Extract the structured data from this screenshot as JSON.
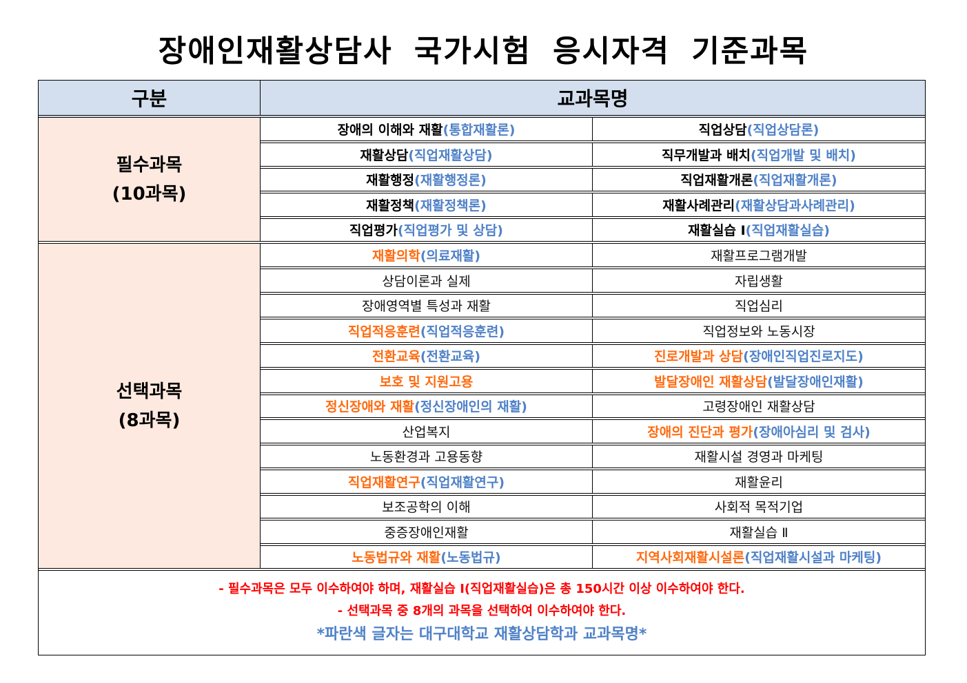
{
  "title": "장애인재활상담사 국가시험 응시자격 기준과목",
  "header": {
    "category": "구분",
    "subjects": "교과목명"
  },
  "colors": {
    "orange": "#ff6a0f",
    "blue": "#4f81c7",
    "red": "#ff0000",
    "header_bg": "#d3dfee",
    "category_bg": "#fde9df"
  },
  "groups": [
    {
      "label": "필수과목",
      "count": "(10과목)",
      "rows": [
        [
          {
            "main": "장애의 이해와 재활",
            "paren": "(통합재활론)",
            "style": "req"
          },
          {
            "main": "직업상담",
            "paren": "(직업상담론)",
            "style": "req"
          }
        ],
        [
          {
            "main": "재활상담",
            "paren": "(직업재활상담)",
            "style": "req"
          },
          {
            "main": "직무개발과 배치",
            "paren": "(직업개발 및 배치)",
            "style": "req"
          }
        ],
        [
          {
            "main": "재활행정",
            "paren": "(재활행정론)",
            "style": "req"
          },
          {
            "main": "직업재활개론",
            "paren": "(직업재활개론)",
            "style": "req"
          }
        ],
        [
          {
            "main": "재활정책",
            "paren": "(재활정책론)",
            "style": "req"
          },
          {
            "main": "재활사례관리",
            "paren": "(재활상담과사례관리)",
            "style": "req"
          }
        ],
        [
          {
            "main": "직업평가",
            "paren": "(직업평가 및 상담)",
            "style": "req"
          },
          {
            "main": "재활실습 Ⅰ",
            "paren": "(직업재활실습)",
            "style": "req"
          }
        ]
      ]
    },
    {
      "label": "선택과목",
      "count": "(8과목)",
      "rows": [
        [
          {
            "main": "재활의학",
            "paren": "(의료재활)",
            "style": "opt"
          },
          {
            "main": "재활프로그램개발",
            "paren": "",
            "style": "plain"
          }
        ],
        [
          {
            "main": "상담이론과 실제",
            "paren": "",
            "style": "plain"
          },
          {
            "main": "자립생활",
            "paren": "",
            "style": "plain"
          }
        ],
        [
          {
            "main": "장애영역별 특성과 재활",
            "paren": "",
            "style": "plain"
          },
          {
            "main": "직업심리",
            "paren": "",
            "style": "plain"
          }
        ],
        [
          {
            "main": "직업적응훈련",
            "paren": "(직업적응훈련)",
            "style": "opt"
          },
          {
            "main": "직업정보와 노동시장",
            "paren": "",
            "style": "plain"
          }
        ],
        [
          {
            "main": "전환교육",
            "paren": "(전환교육)",
            "style": "opt"
          },
          {
            "main": "진로개발과 상담",
            "paren": "(장애인직업진로지도)",
            "style": "opt"
          }
        ],
        [
          {
            "main": "보호 및 지원고용",
            "paren": "",
            "style": "opt"
          },
          {
            "main": "발달장애인 재활상담",
            "paren": "(발달장애인재활)",
            "style": "opt"
          }
        ],
        [
          {
            "main": "정신장애와 재활",
            "paren": "(정신장애인의 재활)",
            "style": "opt"
          },
          {
            "main": "고령장애인 재활상담",
            "paren": "",
            "style": "plain"
          }
        ],
        [
          {
            "main": "산업복지",
            "paren": "",
            "style": "plain"
          },
          {
            "main": "장애의 진단과 평가",
            "paren": "(장애아심리 및 검사)",
            "style": "opt"
          }
        ],
        [
          {
            "main": "노동환경과 고용동향",
            "paren": "",
            "style": "plain"
          },
          {
            "main": "재활시설 경영과 마케팅",
            "paren": "",
            "style": "plain"
          }
        ],
        [
          {
            "main": "직업재활연구",
            "paren": "(직업재활연구)",
            "style": "opt"
          },
          {
            "main": "재활윤리",
            "paren": "",
            "style": "plain"
          }
        ],
        [
          {
            "main": "보조공학의 이해",
            "paren": "",
            "style": "plain"
          },
          {
            "main": "사회적 목적기업",
            "paren": "",
            "style": "plain"
          }
        ],
        [
          {
            "main": "중증장애인재활",
            "paren": "",
            "style": "plain"
          },
          {
            "main": "재활실습 Ⅱ",
            "paren": "",
            "style": "plain"
          }
        ],
        [
          {
            "main": "노동법규와 재활",
            "paren": "(노동법규)",
            "style": "opt"
          },
          {
            "main": "지역사회재활시설론",
            "paren": "(직업재활시설과 마케팅)",
            "style": "opt"
          }
        ]
      ]
    }
  ],
  "notes": {
    "line1": "- 필수과목은 모두 이수하여야 하며, 재활실습 Ⅰ(직업재활실습)은 총 150시간 이상 이수하여야 한다.",
    "line2": "- 선택과목 중 8개의 과목을 선택하여 이수하여야 한다.",
    "line3": "*파란색 글자는 대구대학교 재활상담학과 교과목명*"
  }
}
